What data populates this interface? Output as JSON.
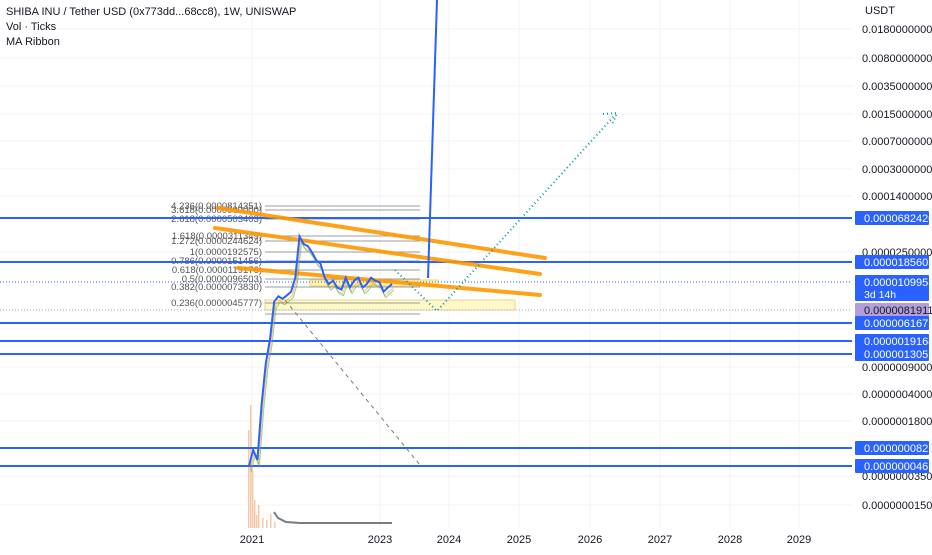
{
  "legend": {
    "title": "SHIBA INU / Tether USD (0x773dd...68cc8), 1W, UNISWAP",
    "vol": "Vol · Ticks",
    "ma": "MA Ribbon"
  },
  "chart_data": {
    "type": "line",
    "title": "SHIBA INU / Tether USD (0x773dd...68cc8), 1W, UNISWAP",
    "y_axis": {
      "unit_label": "USDT",
      "scale": "log",
      "ticks": [
        "0.0180000000",
        "0.0080000000",
        "0.0035000000",
        "0.0015000000",
        "0.0007000000",
        "0.0003000000",
        "0.0001400000",
        "0.0000250000",
        "0.0000009000",
        "0.0000004000",
        "0.0000001800",
        "0.0000000350",
        "0.0000000150"
      ]
    },
    "x_axis": {
      "ticks": [
        "2021",
        "2023",
        "2024",
        "2025",
        "2026",
        "2027",
        "2028",
        "2029"
      ]
    },
    "price_labels": [
      {
        "value": "0.0000682420",
        "color": "#2962ff"
      },
      {
        "value": "0.0000185605",
        "color": "#2962ff"
      },
      {
        "value": "0.0000109953",
        "color": "#2962ff",
        "sublabel": "3d 14h"
      },
      {
        "value": "0.0000081911",
        "color": "#b39ddb"
      },
      {
        "value": "0.0000061672",
        "color": "#2962ff"
      },
      {
        "value": "0.0000019164",
        "color": "#2962ff"
      },
      {
        "value": "0.0000013051",
        "color": "#2962ff"
      },
      {
        "value": "0.0000000821",
        "color": "#2962ff"
      },
      {
        "value": "0.0000000461",
        "color": "#2962ff"
      }
    ],
    "fib_levels": [
      "4.236(0.0000814351)",
      "3.618(0.0000000000)",
      "2.618(0.0000503403)",
      "1.618(0.0000311349)",
      "1.272(0.0000244624)",
      "1(0.0000192575)",
      "0.786(0.0000151456)",
      "0.618(0.0000119176)",
      "0.5(0.0000096503)",
      "0.382(0.0000073830)",
      "0.236(0.0000045777)"
    ],
    "series": [
      {
        "values": [
          5e-08,
          8e-08,
          6e-08,
          3e-07,
          1e-06,
          2e-06,
          6e-06,
          7e-06,
          6.5e-06,
          7.2e-06,
          8e-06,
          1.2e-05,
          4e-05,
          3.2e-05,
          3e-05,
          2.5e-05,
          2e-05,
          1.8e-05,
          1.2e-05,
          1e-05,
          1.1e-05,
          9e-06,
          8.5e-06,
          1.2e-05,
          9e-06,
          1.1e-05,
          1.2e-05,
          9e-06,
          1e-05,
          1.2e-05,
          1.1e-05,
          1.05e-05,
          8e-06,
          9e-06,
          1e-05
        ]
      }
    ],
    "projection": {
      "style": "dotted",
      "from_value": 6.2e-06,
      "to_value": 0.0015
    }
  }
}
